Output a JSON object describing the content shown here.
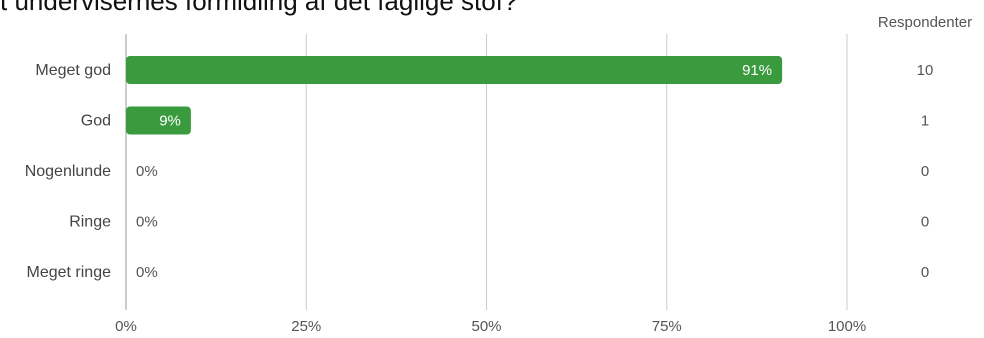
{
  "title": "t undervisernes formidling af det faglige stof?",
  "respondents_header": "Respondenter",
  "colors": {
    "bar": "#3a9a3e",
    "grid": "#cccccc",
    "axis": "#999999"
  },
  "chart_data": {
    "type": "bar",
    "orientation": "horizontal",
    "categories": [
      "Meget god",
      "God",
      "Nogenlunde",
      "Ringe",
      "Meget ringe"
    ],
    "values": [
      91,
      9,
      0,
      0,
      0
    ],
    "value_labels": [
      "91%",
      "9%",
      "0%",
      "0%",
      "0%"
    ],
    "respondents": [
      10,
      1,
      0,
      0,
      0
    ],
    "xlim": [
      0,
      100
    ],
    "xticks": [
      0,
      25,
      50,
      75,
      100
    ],
    "xtick_labels": [
      "0%",
      "25%",
      "50%",
      "75%",
      "100%"
    ],
    "grid": true
  }
}
